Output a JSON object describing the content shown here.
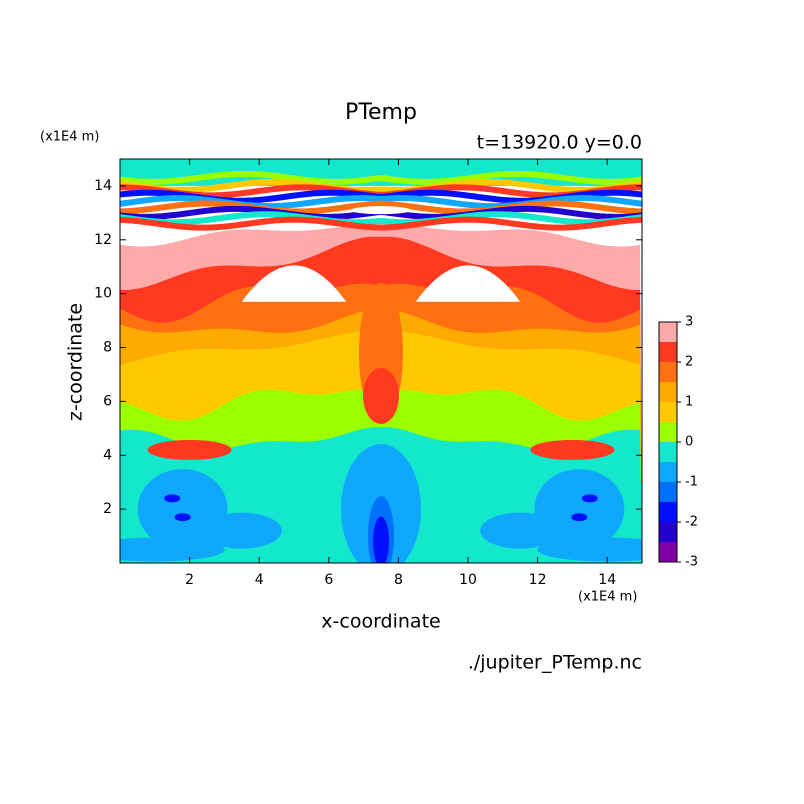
{
  "chart_data": {
    "type": "contour",
    "title": "PTemp",
    "subtitle": "t=13920.0 y=0.0",
    "x_label": "x-coordinate",
    "y_label": "z-coordinate",
    "x_unit": "(x1E4 m)",
    "y_unit": "(x1E4 m)",
    "footer": "./jupiter_PTemp.nc",
    "xlim": [
      0,
      15
    ],
    "xticks": [
      2,
      4,
      6,
      8,
      10,
      12,
      14
    ],
    "ylim": [
      0,
      15
    ],
    "yticks": [
      2,
      4,
      6,
      8,
      10,
      12,
      14
    ],
    "levels": [
      -3,
      -2.5,
      -2,
      -1.5,
      -1,
      -0.5,
      0,
      0.5,
      1,
      1.5,
      2,
      2.5,
      3
    ],
    "colors": [
      "#8000a8",
      "#2400d0",
      "#0010ff",
      "#0070ff",
      "#10a8ff",
      "#14e8cc",
      "#9cff00",
      "#ffc800",
      "#ffaa00",
      "#ff7010",
      "#ff3a20",
      "#ffaaaa"
    ],
    "zticks": [
      -3,
      -2,
      -1,
      0,
      1,
      2,
      3
    ]
  }
}
